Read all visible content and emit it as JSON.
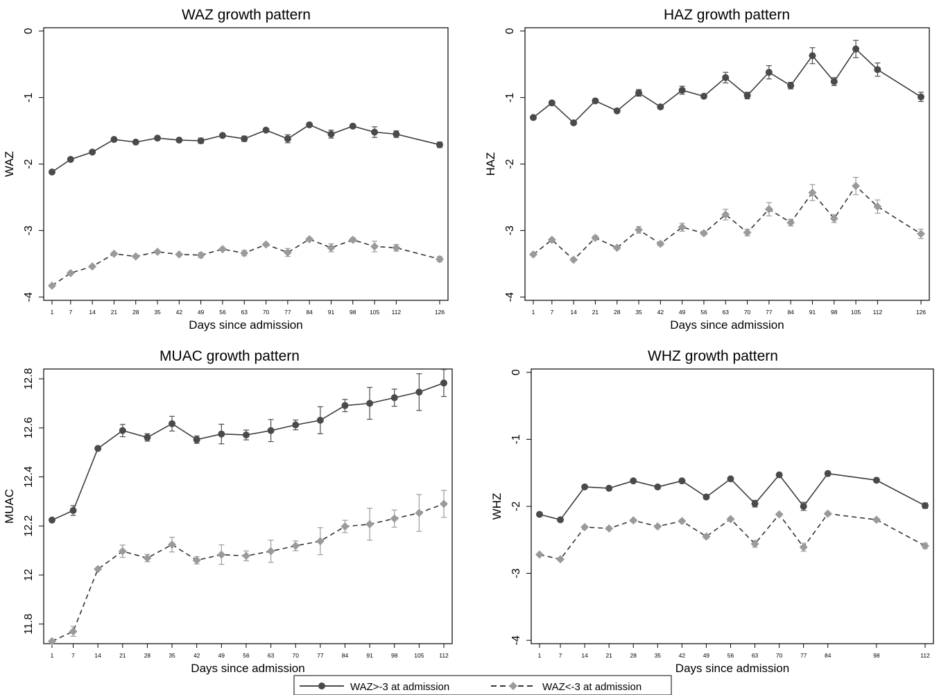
{
  "legend": {
    "series_a": "WAZ>-3 at admission",
    "series_b": "WAZ<-3 at admission"
  },
  "colors": {
    "series_a": "#4a4a4a",
    "series_b": "#9a9a9a",
    "axis": "#000000"
  },
  "chart_data": [
    {
      "type": "line",
      "title": "WAZ growth pattern",
      "xlabel": "Days since admission",
      "ylabel": "WAZ",
      "x": [
        1,
        7,
        14,
        21,
        28,
        35,
        42,
        49,
        56,
        63,
        70,
        77,
        84,
        91,
        98,
        105,
        112,
        126
      ],
      "xticks": [
        "1",
        "7",
        "14",
        "21",
        "28",
        "35",
        "42",
        "49",
        "56",
        "63",
        "70",
        "77",
        "84",
        "91",
        "98",
        "105",
        "112",
        "126"
      ],
      "ylim": [
        -4.05,
        0.05
      ],
      "yticks": [
        0,
        -1,
        -2,
        -3,
        -4
      ],
      "ytick_labels": [
        "0",
        "-1",
        "-2",
        "-3",
        "-4"
      ],
      "series": [
        {
          "values": [
            -2.12,
            -1.93,
            -1.82,
            -1.63,
            -1.67,
            -1.61,
            -1.64,
            -1.65,
            -1.57,
            -1.62,
            -1.49,
            -1.62,
            -1.41,
            -1.55,
            -1.43,
            -1.52,
            -1.55,
            -1.71
          ],
          "err": [
            0.02,
            0.02,
            0.02,
            0.02,
            0.02,
            0.02,
            0.02,
            0.04,
            0.02,
            0.04,
            0.02,
            0.06,
            0.02,
            0.06,
            0.03,
            0.08,
            0.05,
            0.04
          ]
        },
        {
          "values": [
            -3.83,
            -3.64,
            -3.54,
            -3.35,
            -3.39,
            -3.32,
            -3.36,
            -3.37,
            -3.28,
            -3.34,
            -3.21,
            -3.33,
            -3.13,
            -3.26,
            -3.14,
            -3.24,
            -3.26,
            -3.43
          ],
          "err": [
            0.02,
            0.02,
            0.02,
            0.02,
            0.02,
            0.02,
            0.02,
            0.04,
            0.02,
            0.04,
            0.02,
            0.06,
            0.02,
            0.06,
            0.03,
            0.08,
            0.05,
            0.04
          ]
        }
      ]
    },
    {
      "type": "line",
      "title": "HAZ growth pattern",
      "xlabel": "Days since admission",
      "ylabel": "HAZ",
      "x": [
        1,
        7,
        14,
        21,
        28,
        35,
        42,
        49,
        56,
        63,
        70,
        77,
        84,
        91,
        98,
        105,
        112,
        126
      ],
      "xticks": [
        "1",
        "7",
        "14",
        "21",
        "28",
        "35",
        "42",
        "49",
        "56",
        "63",
        "70",
        "77",
        "84",
        "91",
        "98",
        "105",
        "112",
        "126"
      ],
      "ylim": [
        -4.05,
        0.05
      ],
      "yticks": [
        0,
        -1,
        -2,
        -3,
        -4
      ],
      "ytick_labels": [
        "0",
        "-1",
        "-2",
        "-3",
        "-4"
      ],
      "series": [
        {
          "values": [
            -1.3,
            -1.08,
            -1.38,
            -1.05,
            -1.2,
            -0.93,
            -1.14,
            -0.89,
            -0.98,
            -0.7,
            -0.97,
            -0.62,
            -0.82,
            -0.37,
            -0.76,
            -0.27,
            -0.58,
            -0.99
          ],
          "err": [
            0.02,
            0.02,
            0.02,
            0.03,
            0.02,
            0.05,
            0.03,
            0.06,
            0.03,
            0.08,
            0.05,
            0.1,
            0.05,
            0.12,
            0.06,
            0.13,
            0.1,
            0.07
          ]
        },
        {
          "values": [
            -3.36,
            -3.14,
            -3.44,
            -3.11,
            -3.26,
            -2.99,
            -3.2,
            -2.95,
            -3.04,
            -2.76,
            -3.03,
            -2.68,
            -2.88,
            -2.43,
            -2.82,
            -2.33,
            -2.64,
            -3.05
          ],
          "err": [
            0.02,
            0.02,
            0.02,
            0.03,
            0.02,
            0.05,
            0.03,
            0.06,
            0.03,
            0.08,
            0.05,
            0.1,
            0.05,
            0.12,
            0.06,
            0.13,
            0.1,
            0.07
          ]
        }
      ]
    },
    {
      "type": "line",
      "title": "MUAC growth pattern",
      "xlabel": "Days since admission",
      "ylabel": "MUAC",
      "x": [
        1,
        7,
        14,
        21,
        28,
        35,
        42,
        49,
        56,
        63,
        70,
        77,
        84,
        91,
        98,
        105,
        112
      ],
      "xticks": [
        "1",
        "7",
        "14",
        "21",
        "28",
        "35",
        "42",
        "49",
        "56",
        "63",
        "70",
        "77",
        "84",
        "91",
        "98",
        "105",
        "112"
      ],
      "ylim": [
        11.72,
        12.84
      ],
      "yticks": [
        11.8,
        12.0,
        12.2,
        12.4,
        12.6,
        12.8
      ],
      "ytick_labels": [
        "11.8",
        "12",
        "12.2",
        "12.4",
        "12.6",
        "12.8"
      ],
      "series": [
        {
          "values": [
            12.224,
            12.263,
            12.516,
            12.589,
            12.561,
            12.617,
            12.552,
            12.575,
            12.571,
            12.589,
            12.612,
            12.631,
            12.691,
            12.7,
            12.723,
            12.746,
            12.783
          ],
          "err": [
            0.005,
            0.02,
            0.005,
            0.025,
            0.015,
            0.03,
            0.015,
            0.04,
            0.02,
            0.045,
            0.02,
            0.055,
            0.025,
            0.065,
            0.035,
            0.075,
            0.055
          ]
        },
        {
          "values": [
            11.73,
            11.77,
            12.024,
            12.097,
            12.069,
            12.124,
            12.06,
            12.083,
            12.078,
            12.097,
            12.119,
            12.138,
            12.198,
            12.207,
            12.23,
            12.253,
            12.29
          ],
          "err": [
            0.005,
            0.02,
            0.005,
            0.025,
            0.015,
            0.03,
            0.015,
            0.04,
            0.02,
            0.045,
            0.02,
            0.055,
            0.025,
            0.065,
            0.035,
            0.075,
            0.055
          ]
        }
      ]
    },
    {
      "type": "line",
      "title": "WHZ growth pattern",
      "xlabel": "Days since admission",
      "ylabel": "WHZ",
      "x": [
        1,
        7,
        14,
        21,
        28,
        35,
        42,
        49,
        56,
        63,
        70,
        77,
        84,
        98,
        112
      ],
      "xticks": [
        "1",
        "7",
        "14",
        "21",
        "28",
        "35",
        "42",
        "49",
        "56",
        "63",
        "70",
        "77",
        "84",
        "98",
        "112"
      ],
      "ylim": [
        -4.05,
        0.05
      ],
      "yticks": [
        0,
        -1,
        -2,
        -3,
        -4
      ],
      "ytick_labels": [
        "0",
        "-1",
        "-2",
        "-3",
        "-4"
      ],
      "series": [
        {
          "values": [
            -2.12,
            -2.2,
            -1.71,
            -1.73,
            -1.62,
            -1.71,
            -1.62,
            -1.86,
            -1.59,
            -1.96,
            -1.53,
            -2.0,
            -1.51,
            -1.61,
            -1.99
          ],
          "err": [
            0.02,
            0.02,
            0.02,
            0.02,
            0.02,
            0.02,
            0.02,
            0.03,
            0.02,
            0.05,
            0.02,
            0.06,
            0.02,
            0.02,
            0.04
          ]
        },
        {
          "values": [
            -2.72,
            -2.79,
            -2.31,
            -2.33,
            -2.21,
            -2.3,
            -2.22,
            -2.45,
            -2.19,
            -2.56,
            -2.12,
            -2.61,
            -2.11,
            -2.2,
            -2.59
          ],
          "err": [
            0.02,
            0.02,
            0.02,
            0.02,
            0.02,
            0.02,
            0.02,
            0.03,
            0.02,
            0.05,
            0.02,
            0.06,
            0.02,
            0.02,
            0.04
          ]
        }
      ]
    }
  ]
}
